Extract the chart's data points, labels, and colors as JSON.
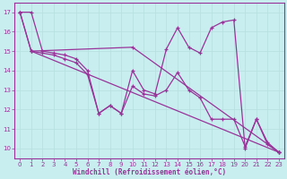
{
  "background_color": "#c8eef0",
  "line_color": "#993399",
  "grid_color": "#b8dfe0",
  "xlabel": "Windchill (Refroidissement éolien,°C)",
  "xlabel_color": "#993399",
  "tick_color": "#993399",
  "ylim": [
    9.5,
    17.5
  ],
  "xlim": [
    -0.5,
    23.5
  ],
  "yticks": [
    10,
    11,
    12,
    13,
    14,
    15,
    16,
    17
  ],
  "xticks": [
    0,
    1,
    2,
    3,
    4,
    5,
    6,
    7,
    8,
    9,
    10,
    11,
    12,
    13,
    14,
    15,
    16,
    17,
    18,
    19,
    20,
    21,
    22,
    23
  ],
  "series1_x": [
    0,
    1,
    2,
    3,
    4,
    5,
    6,
    7,
    8,
    9,
    10,
    11,
    12,
    13,
    14,
    15,
    16,
    17,
    18,
    19,
    20,
    21,
    22,
    23
  ],
  "series1_y": [
    17.0,
    17.0,
    15.0,
    14.9,
    14.8,
    14.6,
    14.0,
    11.8,
    12.2,
    11.8,
    14.0,
    13.0,
    12.8,
    15.1,
    16.2,
    15.2,
    14.9,
    16.2,
    16.5,
    16.6,
    10.0,
    11.5,
    10.2,
    9.8
  ],
  "series2_x": [
    1,
    2,
    3,
    4,
    5,
    6,
    7,
    8,
    9,
    10,
    11,
    12,
    13,
    14,
    15,
    16,
    17,
    18,
    19,
    20,
    21,
    22,
    23
  ],
  "series2_y": [
    15.0,
    14.9,
    14.8,
    14.6,
    14.4,
    13.8,
    11.8,
    12.2,
    11.8,
    13.2,
    12.8,
    12.7,
    13.0,
    13.9,
    13.0,
    12.6,
    11.5,
    11.5,
    11.5,
    10.1,
    11.5,
    10.3,
    9.8
  ],
  "series3_x": [
    0,
    1,
    23
  ],
  "series3_y": [
    17.0,
    15.0,
    9.8
  ],
  "series4_x": [
    0,
    1,
    10,
    23
  ],
  "series4_y": [
    17.0,
    15.0,
    15.2,
    9.8
  ]
}
